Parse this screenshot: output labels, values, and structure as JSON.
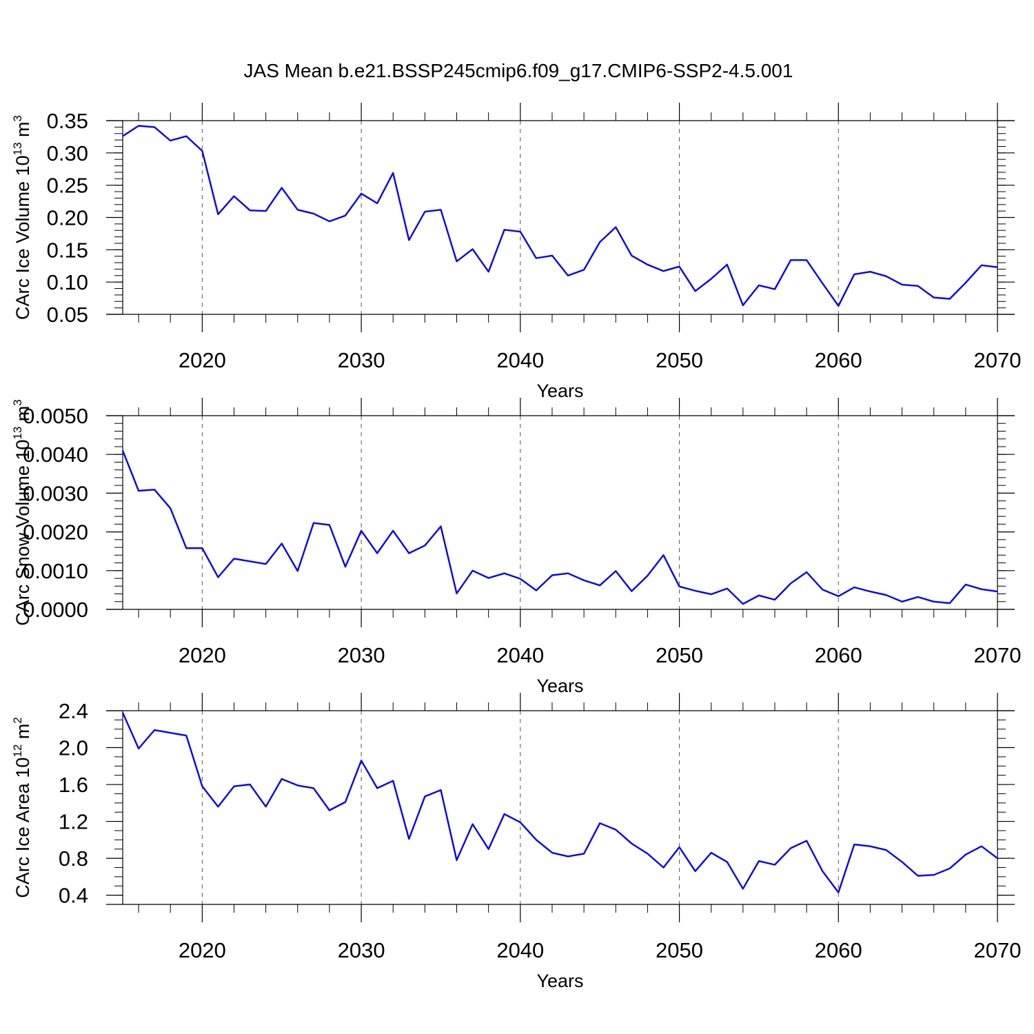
{
  "figure_title": "JAS Mean b.e21.BSSP245cmip6.f09_g17.CMIP6-SSP2-4.5.001",
  "colors": {
    "line": "#0000ff",
    "axis": "#000000",
    "grid": "#555555"
  },
  "chart_data": [
    {
      "type": "line",
      "name": "panel-ice-volume",
      "ylabel": "CArc Ice Volume",
      "ylabel_exp": "13",
      "ylabel_unit": "m",
      "ylabel_unit_exp": "3",
      "xlabel": "Years",
      "xlim": [
        2015,
        2070
      ],
      "ylim": [
        0.05,
        0.35
      ],
      "yticks": [
        0.05,
        0.1,
        0.15,
        0.2,
        0.25,
        0.3,
        0.35
      ],
      "ytick_labels": [
        "0.05",
        "0.10",
        "0.15",
        "0.20",
        "0.25",
        "0.30",
        "0.35"
      ],
      "ytick_minor_step": 0.01,
      "xticks": [
        2020,
        2030,
        2040,
        2050,
        2060,
        2070
      ],
      "xtick_labels": [
        "2020",
        "2030",
        "2040",
        "2050",
        "2060",
        "2070"
      ],
      "xtick_minor_step": 2,
      "grid_x": true,
      "x": [
        2015,
        2016,
        2017,
        2018,
        2019,
        2020,
        2021,
        2022,
        2023,
        2024,
        2025,
        2026,
        2027,
        2028,
        2029,
        2030,
        2031,
        2032,
        2033,
        2034,
        2035,
        2036,
        2037,
        2038,
        2039,
        2040,
        2041,
        2042,
        2043,
        2044,
        2045,
        2046,
        2047,
        2048,
        2049,
        2050,
        2051,
        2052,
        2053,
        2054,
        2055,
        2056,
        2057,
        2058,
        2059,
        2060,
        2061,
        2062,
        2063,
        2064,
        2065,
        2066,
        2067,
        2068,
        2069,
        2070
      ],
      "y": [
        0.326,
        0.342,
        0.34,
        0.319,
        0.326,
        0.303,
        0.205,
        0.233,
        0.211,
        0.21,
        0.246,
        0.212,
        0.206,
        0.194,
        0.203,
        0.237,
        0.222,
        0.269,
        0.165,
        0.209,
        0.212,
        0.132,
        0.151,
        0.116,
        0.181,
        0.178,
        0.137,
        0.141,
        0.11,
        0.119,
        0.162,
        0.185,
        0.141,
        0.127,
        0.117,
        0.124,
        0.086,
        0.105,
        0.127,
        0.064,
        0.095,
        0.089,
        0.134,
        0.134,
        0.098,
        0.063,
        0.112,
        0.116,
        0.109,
        0.096,
        0.094,
        0.076,
        0.074,
        0.099,
        0.126,
        0.123
      ]
    },
    {
      "type": "line",
      "name": "panel-snow-volume",
      "ylabel": "CArc Snow Volume",
      "ylabel_exp": "13",
      "ylabel_unit": "m",
      "ylabel_unit_exp": "3",
      "xlabel": "Years",
      "xlim": [
        2015,
        2070
      ],
      "ylim": [
        0.0,
        0.005
      ],
      "yticks": [
        0.0,
        0.001,
        0.002,
        0.003,
        0.004,
        0.005
      ],
      "ytick_labels": [
        "0.0000",
        "0.0010",
        "0.0020",
        "0.0030",
        "0.0040",
        "0.0050"
      ],
      "ytick_minor_step": 0.0002,
      "xticks": [
        2020,
        2030,
        2040,
        2050,
        2060,
        2070
      ],
      "xtick_labels": [
        "2020",
        "2030",
        "2040",
        "2050",
        "2060",
        "2070"
      ],
      "xtick_minor_step": 2,
      "grid_x": true,
      "x": [
        2015,
        2016,
        2017,
        2018,
        2019,
        2020,
        2021,
        2022,
        2023,
        2024,
        2025,
        2026,
        2027,
        2028,
        2029,
        2030,
        2031,
        2032,
        2033,
        2034,
        2035,
        2036,
        2037,
        2038,
        2039,
        2040,
        2041,
        2042,
        2043,
        2044,
        2045,
        2046,
        2047,
        2048,
        2049,
        2050,
        2051,
        2052,
        2053,
        2054,
        2055,
        2056,
        2057,
        2058,
        2059,
        2060,
        2061,
        2062,
        2063,
        2064,
        2065,
        2066,
        2067,
        2068,
        2069,
        2070
      ],
      "y": [
        0.0041,
        0.00306,
        0.00309,
        0.00261,
        0.00158,
        0.00158,
        0.00083,
        0.00131,
        0.00124,
        0.00117,
        0.0017,
        0.00099,
        0.00223,
        0.00218,
        0.0011,
        0.00203,
        0.00145,
        0.00203,
        0.00145,
        0.00165,
        0.00214,
        0.00041,
        0.001,
        0.00081,
        0.00093,
        0.00079,
        0.00049,
        0.00088,
        0.00093,
        0.00075,
        0.00062,
        0.00099,
        0.00047,
        0.00087,
        0.0014,
        0.00059,
        0.00048,
        0.00039,
        0.00054,
        0.00014,
        0.00036,
        0.00025,
        0.00067,
        0.00096,
        0.00051,
        0.00034,
        0.00057,
        0.00046,
        0.00037,
        0.0002,
        0.00032,
        0.0002,
        0.00016,
        0.00064,
        0.00052,
        0.00046
      ]
    },
    {
      "type": "line",
      "name": "panel-ice-area",
      "ylabel": "CArc Ice Area",
      "ylabel_exp": "12",
      "ylabel_unit": "m",
      "ylabel_unit_exp": "2",
      "xlabel": "Years",
      "xlim": [
        2015,
        2070
      ],
      "ylim": [
        0.3,
        2.4
      ],
      "yticks": [
        0.4,
        0.8,
        1.2,
        1.6,
        2.0,
        2.4
      ],
      "ytick_labels": [
        "0.4",
        "0.8",
        "1.2",
        "1.6",
        "2.0",
        "2.4"
      ],
      "ytick_minor_step": 0.1,
      "xticks": [
        2020,
        2030,
        2040,
        2050,
        2060,
        2070
      ],
      "xtick_labels": [
        "2020",
        "2030",
        "2040",
        "2050",
        "2060",
        "2070"
      ],
      "xtick_minor_step": 2,
      "grid_x": true,
      "x": [
        2015,
        2016,
        2017,
        2018,
        2019,
        2020,
        2021,
        2022,
        2023,
        2024,
        2025,
        2026,
        2027,
        2028,
        2029,
        2030,
        2031,
        2032,
        2033,
        2034,
        2035,
        2036,
        2037,
        2038,
        2039,
        2040,
        2041,
        2042,
        2043,
        2044,
        2045,
        2046,
        2047,
        2048,
        2049,
        2050,
        2051,
        2052,
        2053,
        2054,
        2055,
        2056,
        2057,
        2058,
        2059,
        2060,
        2061,
        2062,
        2063,
        2064,
        2065,
        2066,
        2067,
        2068,
        2069,
        2070
      ],
      "y": [
        2.38,
        1.99,
        2.19,
        2.16,
        2.13,
        1.58,
        1.36,
        1.58,
        1.6,
        1.36,
        1.66,
        1.59,
        1.56,
        1.32,
        1.41,
        1.86,
        1.56,
        1.64,
        1.01,
        1.47,
        1.54,
        0.78,
        1.17,
        0.9,
        1.28,
        1.19,
        1.0,
        0.86,
        0.82,
        0.85,
        1.18,
        1.11,
        0.96,
        0.85,
        0.7,
        0.92,
        0.66,
        0.86,
        0.76,
        0.47,
        0.77,
        0.73,
        0.91,
        0.99,
        0.66,
        0.43,
        0.95,
        0.93,
        0.89,
        0.76,
        0.61,
        0.62,
        0.69,
        0.84,
        0.93,
        0.8
      ]
    }
  ]
}
